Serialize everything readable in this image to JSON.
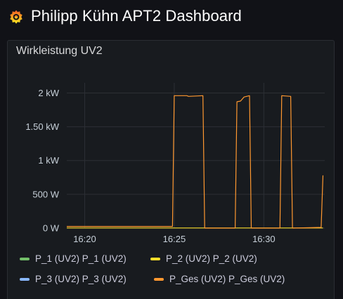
{
  "header": {
    "title": "Philipp Kühn APT2 Dashboard",
    "logo_icon": "grafana-logo-icon"
  },
  "panel": {
    "title": "Wirkleistung UV2"
  },
  "legend": [
    {
      "label": "P_1 (UV2) P_1 (UV2)",
      "color": "#73bf69"
    },
    {
      "label": "P_2 (UV2) P_2 (UV2)",
      "color": "#fade2a"
    },
    {
      "label": "P_3 (UV2) P_3 (UV2)",
      "color": "#8ab8ff"
    },
    {
      "label": "P_Ges (UV2) P_Ges (UV2)",
      "color": "#ff9830"
    }
  ],
  "chart_data": {
    "type": "line",
    "x_tick_labels": [
      "16:20",
      "16:25",
      "16:30"
    ],
    "y_tick_labels": [
      "0 W",
      "500 W",
      "1 kW",
      "1.50 kW",
      "2 kW"
    ],
    "y_ticks": [
      0,
      500,
      1000,
      1500,
      2000
    ],
    "x_ticks": [
      "16:20",
      "16:25",
      "16:30"
    ],
    "ylim": [
      0,
      2150
    ],
    "xlim": [
      "16:19",
      "16:33.4"
    ],
    "grid": true,
    "legend_position": "bottom",
    "series": [
      {
        "name": "P_Ges (UV2) P_Ges (UV2)",
        "color": "#ff9830",
        "points": [
          [
            "16:19",
            25
          ],
          [
            "16:24.9",
            25
          ],
          [
            "16:25",
            1960
          ],
          [
            "16:25.7",
            1960
          ],
          [
            "16:25.8",
            1950
          ],
          [
            "16:26.6",
            1960
          ],
          [
            "16:26.7",
            0
          ],
          [
            "16:28.4",
            0
          ],
          [
            "16:28.5",
            1870
          ],
          [
            "16:28.7",
            1880
          ],
          [
            "16:28.9",
            1940
          ],
          [
            "16:29.2",
            1960
          ],
          [
            "16:29.3",
            0
          ],
          [
            "16:30.9",
            0
          ],
          [
            "16:31",
            1960
          ],
          [
            "16:31.5",
            1950
          ],
          [
            "16:31.6",
            0
          ],
          [
            "16:33.2",
            10
          ],
          [
            "16:33.3",
            780
          ]
        ]
      },
      {
        "name": "P_2 (UV2) P_2 (UV2)",
        "color": "#fade2a",
        "points": [
          [
            "16:19",
            2
          ],
          [
            "16:33.3",
            2
          ]
        ]
      }
    ]
  }
}
